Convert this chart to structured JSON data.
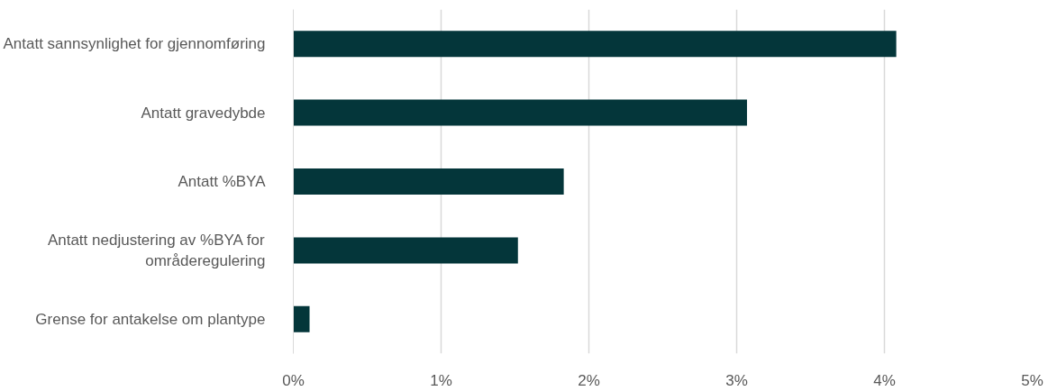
{
  "chart_data": {
    "type": "bar",
    "orientation": "horizontal",
    "categories": [
      "Antatt sannsynlighet for gjennomføring",
      "Antatt gravedybde",
      "Antatt %BYA",
      "Antatt nedjustering av %BYA for\nområderegulering",
      "Grense for antakelse om plantype"
    ],
    "values": [
      4.08,
      3.07,
      1.83,
      1.52,
      0.11
    ],
    "color": "#04363a",
    "xlim": [
      0,
      5
    ],
    "xticks": [
      {
        "value": 0,
        "label": "0%"
      },
      {
        "value": 1,
        "label": "1%"
      },
      {
        "value": 2,
        "label": "2%"
      },
      {
        "value": 3,
        "label": "3%"
      },
      {
        "value": 4,
        "label": "4%"
      },
      {
        "value": 5,
        "label": "5%"
      }
    ],
    "grid": "x"
  }
}
